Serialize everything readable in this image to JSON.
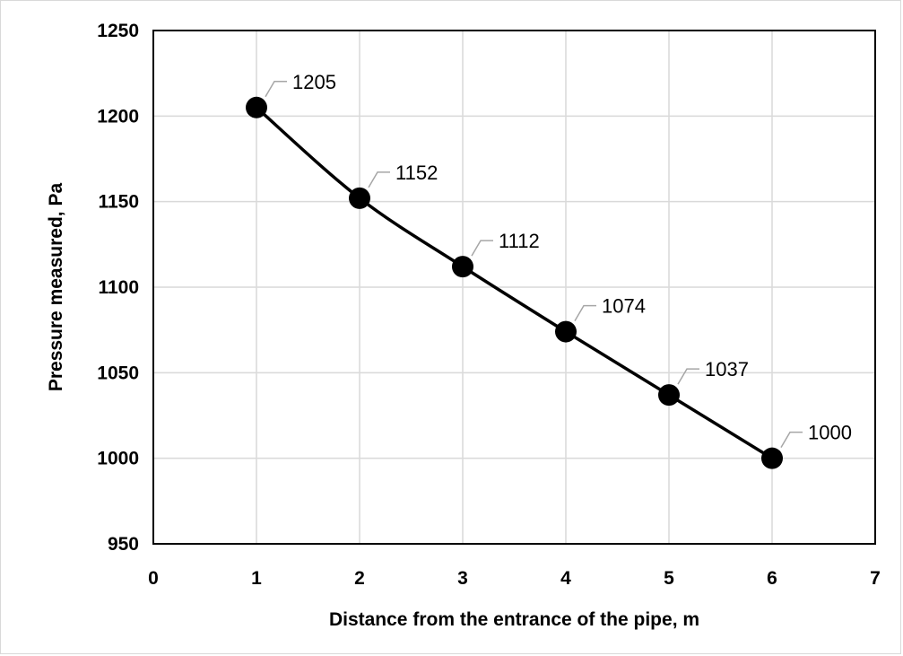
{
  "chart_data": {
    "type": "scatter",
    "title": "",
    "xlabel": "Distance from the entrance of the pipe, m",
    "ylabel": "Pressure measured, Pa",
    "xlim": [
      0,
      7
    ],
    "ylim": [
      950,
      1250
    ],
    "xticks": [
      0,
      1,
      2,
      3,
      4,
      5,
      6,
      7
    ],
    "yticks": [
      950,
      1000,
      1050,
      1100,
      1150,
      1200,
      1250
    ],
    "grid": true,
    "smoothed_line": true,
    "series": [
      {
        "x": [
          1,
          2,
          3,
          4,
          5,
          6
        ],
        "y": [
          1205,
          1152,
          1112,
          1074,
          1037,
          1000
        ],
        "labels": [
          "1205",
          "1152",
          "1112",
          "1074",
          "1037",
          "1000"
        ],
        "color": "#000000"
      }
    ]
  }
}
